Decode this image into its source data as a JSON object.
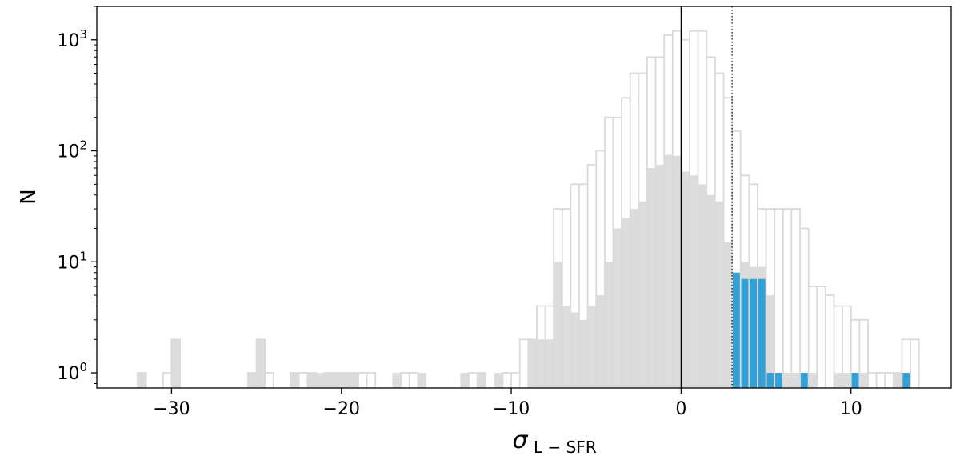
{
  "chart_data": {
    "type": "histogram",
    "title": "",
    "xlabel": "σ",
    "xlabel_sub": "L − SFR",
    "ylabel": "N",
    "xlim": [
      -34.4,
      15.9
    ],
    "ylim": [
      0.73,
      2000
    ],
    "yscale": "log",
    "xticks": [
      {
        "value": -30,
        "label": "−30"
      },
      {
        "value": -20,
        "label": "−20"
      },
      {
        "value": -10,
        "label": "−10"
      },
      {
        "value": 0,
        "label": "0"
      },
      {
        "value": 10,
        "label": "10"
      }
    ],
    "yticks": [
      {
        "value": 1,
        "exp": "0"
      },
      {
        "value": 10,
        "exp": "1"
      },
      {
        "value": 100,
        "exp": "2"
      },
      {
        "value": 1000,
        "exp": "3"
      }
    ],
    "ytick_base": "10",
    "bin_width": 0.5,
    "series": [
      {
        "style": "step-outline",
        "color": "#dadada",
        "bins": [
          [
            -32,
            1
          ],
          [
            -30.5,
            1
          ],
          [
            -30,
            2
          ],
          [
            -25.5,
            1
          ],
          [
            -25,
            2
          ],
          [
            -24.5,
            1
          ],
          [
            -23,
            1
          ],
          [
            -22.5,
            1
          ],
          [
            -22,
            1
          ],
          [
            -21,
            1
          ],
          [
            -20.5,
            1
          ],
          [
            -20,
            1
          ],
          [
            -19.5,
            1
          ],
          [
            -19,
            1
          ],
          [
            -18.5,
            1
          ],
          [
            -16.5,
            1
          ],
          [
            -16,
            1
          ],
          [
            -12.5,
            1
          ],
          [
            -12,
            1
          ],
          [
            -10.5,
            1
          ],
          [
            -10,
            1
          ],
          [
            -9.5,
            2
          ],
          [
            -9,
            2
          ],
          [
            -8.5,
            4
          ],
          [
            -8,
            4
          ],
          [
            -7.5,
            30
          ],
          [
            -7,
            30
          ],
          [
            -6.5,
            50
          ],
          [
            -6,
            50
          ],
          [
            -5.5,
            75
          ],
          [
            -5,
            100
          ],
          [
            -4.5,
            200
          ],
          [
            -4,
            200
          ],
          [
            -3.5,
            300
          ],
          [
            -3,
            500
          ],
          [
            -2.5,
            500
          ],
          [
            -2,
            700
          ],
          [
            -1.5,
            700
          ],
          [
            -1,
            1100
          ],
          [
            -0.5,
            1200
          ],
          [
            0,
            1000
          ],
          [
            0.5,
            1200
          ],
          [
            1,
            1200
          ],
          [
            1.5,
            700
          ],
          [
            2,
            500
          ],
          [
            2.5,
            300
          ],
          [
            3,
            150
          ],
          [
            3.5,
            60
          ],
          [
            4,
            50
          ],
          [
            4.5,
            30
          ],
          [
            5,
            30
          ],
          [
            5.5,
            30
          ],
          [
            6,
            30
          ],
          [
            6.5,
            30
          ],
          [
            7,
            20
          ],
          [
            7.5,
            6
          ],
          [
            8,
            6
          ],
          [
            8.5,
            5
          ],
          [
            9,
            4
          ],
          [
            9.5,
            4
          ],
          [
            10,
            3
          ],
          [
            10.5,
            3
          ],
          [
            11,
            1
          ],
          [
            11.5,
            1
          ],
          [
            12,
            1
          ],
          [
            12.5,
            1
          ],
          [
            13,
            2
          ],
          [
            13.5,
            2
          ]
        ]
      },
      {
        "style": "filled",
        "color": "#dcdcdc",
        "bins": [
          [
            -32,
            1
          ],
          [
            -30,
            2
          ],
          [
            -25.5,
            1
          ],
          [
            -25,
            2
          ],
          [
            -23,
            1
          ],
          [
            -22,
            1
          ],
          [
            -21.5,
            1
          ],
          [
            -21,
            1
          ],
          [
            -20.5,
            1
          ],
          [
            -20,
            1
          ],
          [
            -19.5,
            1
          ],
          [
            -17,
            1
          ],
          [
            -15.5,
            1
          ],
          [
            -13,
            1
          ],
          [
            -12,
            1
          ],
          [
            -11,
            1
          ],
          [
            -9,
            2
          ],
          [
            -8.5,
            2
          ],
          [
            -8,
            2
          ],
          [
            -7.5,
            10
          ],
          [
            -7,
            4
          ],
          [
            -6.5,
            3.5
          ],
          [
            -6,
            3
          ],
          [
            -5.5,
            4
          ],
          [
            -5,
            5
          ],
          [
            -4.5,
            10
          ],
          [
            -4,
            20
          ],
          [
            -3.5,
            25
          ],
          [
            -3,
            30
          ],
          [
            -2.5,
            35
          ],
          [
            -2,
            70
          ],
          [
            -1.5,
            75
          ],
          [
            -1,
            92
          ],
          [
            -0.5,
            90
          ],
          [
            0,
            65
          ],
          [
            0.5,
            60
          ],
          [
            1,
            50
          ],
          [
            1.5,
            40
          ],
          [
            2,
            35
          ],
          [
            2.5,
            15
          ],
          [
            3,
            5
          ],
          [
            3.5,
            10
          ],
          [
            4,
            9
          ],
          [
            4.5,
            9
          ],
          [
            5,
            5
          ],
          [
            5.5,
            1
          ],
          [
            6,
            1
          ],
          [
            6.5,
            1
          ],
          [
            7,
            1
          ],
          [
            7.5,
            1
          ],
          [
            9,
            1
          ],
          [
            9.5,
            1
          ],
          [
            10,
            1
          ],
          [
            10.5,
            1
          ],
          [
            12.5,
            1
          ],
          [
            13,
            1
          ]
        ]
      },
      {
        "style": "filled",
        "color": "#33a1d7",
        "bins": [
          [
            3,
            8
          ],
          [
            3.5,
            7
          ],
          [
            4,
            7
          ],
          [
            4.5,
            7
          ],
          [
            5,
            1
          ],
          [
            5.5,
            1
          ],
          [
            7,
            1
          ],
          [
            10,
            1
          ],
          [
            13,
            1
          ]
        ]
      }
    ],
    "vlines": [
      {
        "x": 0,
        "style": "solid",
        "color": "#000000"
      },
      {
        "x": 3,
        "style": "dotted",
        "color": "#000000"
      }
    ],
    "grid": false
  }
}
